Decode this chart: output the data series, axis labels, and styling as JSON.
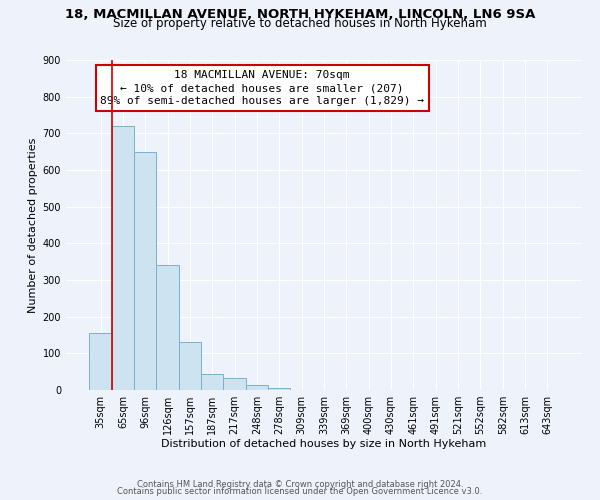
{
  "title1": "18, MACMILLAN AVENUE, NORTH HYKEHAM, LINCOLN, LN6 9SA",
  "title2": "Size of property relative to detached houses in North Hykeham",
  "xlabel": "Distribution of detached houses by size in North Hykeham",
  "ylabel": "Number of detached properties",
  "categories": [
    "35sqm",
    "65sqm",
    "96sqm",
    "126sqm",
    "157sqm",
    "187sqm",
    "217sqm",
    "248sqm",
    "278sqm",
    "309sqm",
    "339sqm",
    "369sqm",
    "400sqm",
    "430sqm",
    "461sqm",
    "491sqm",
    "521sqm",
    "552sqm",
    "582sqm",
    "613sqm",
    "643sqm"
  ],
  "bar_values": [
    155,
    720,
    650,
    340,
    130,
    43,
    33,
    15,
    5,
    0,
    0,
    0,
    0,
    0,
    0,
    0,
    0,
    0,
    0,
    0,
    0
  ],
  "bar_color": "#cde4f0",
  "bar_edge_color": "#7ab0cc",
  "bar_width": 1.0,
  "vline_x": 0.5,
  "vline_color": "#cc0000",
  "ylim": [
    0,
    900
  ],
  "yticks": [
    0,
    100,
    200,
    300,
    400,
    500,
    600,
    700,
    800,
    900
  ],
  "annotation_line1": "18 MACMILLAN AVENUE: 70sqm",
  "annotation_line2": "← 10% of detached houses are smaller (207)",
  "annotation_line3": "89% of semi-detached houses are larger (1,829) →",
  "annotation_box_color": "#ffffff",
  "annotation_box_edge": "#cc0000",
  "footer1": "Contains HM Land Registry data © Crown copyright and database right 2024.",
  "footer2": "Contains public sector information licensed under the Open Government Licence v3.0.",
  "background_color": "#eef2fb",
  "grid_color": "#ffffff",
  "title_fontsize": 9.5,
  "subtitle_fontsize": 8.5,
  "tick_fontsize": 7,
  "ylabel_fontsize": 8,
  "xlabel_fontsize": 8,
  "annotation_fontsize": 8,
  "footer_fontsize": 6
}
